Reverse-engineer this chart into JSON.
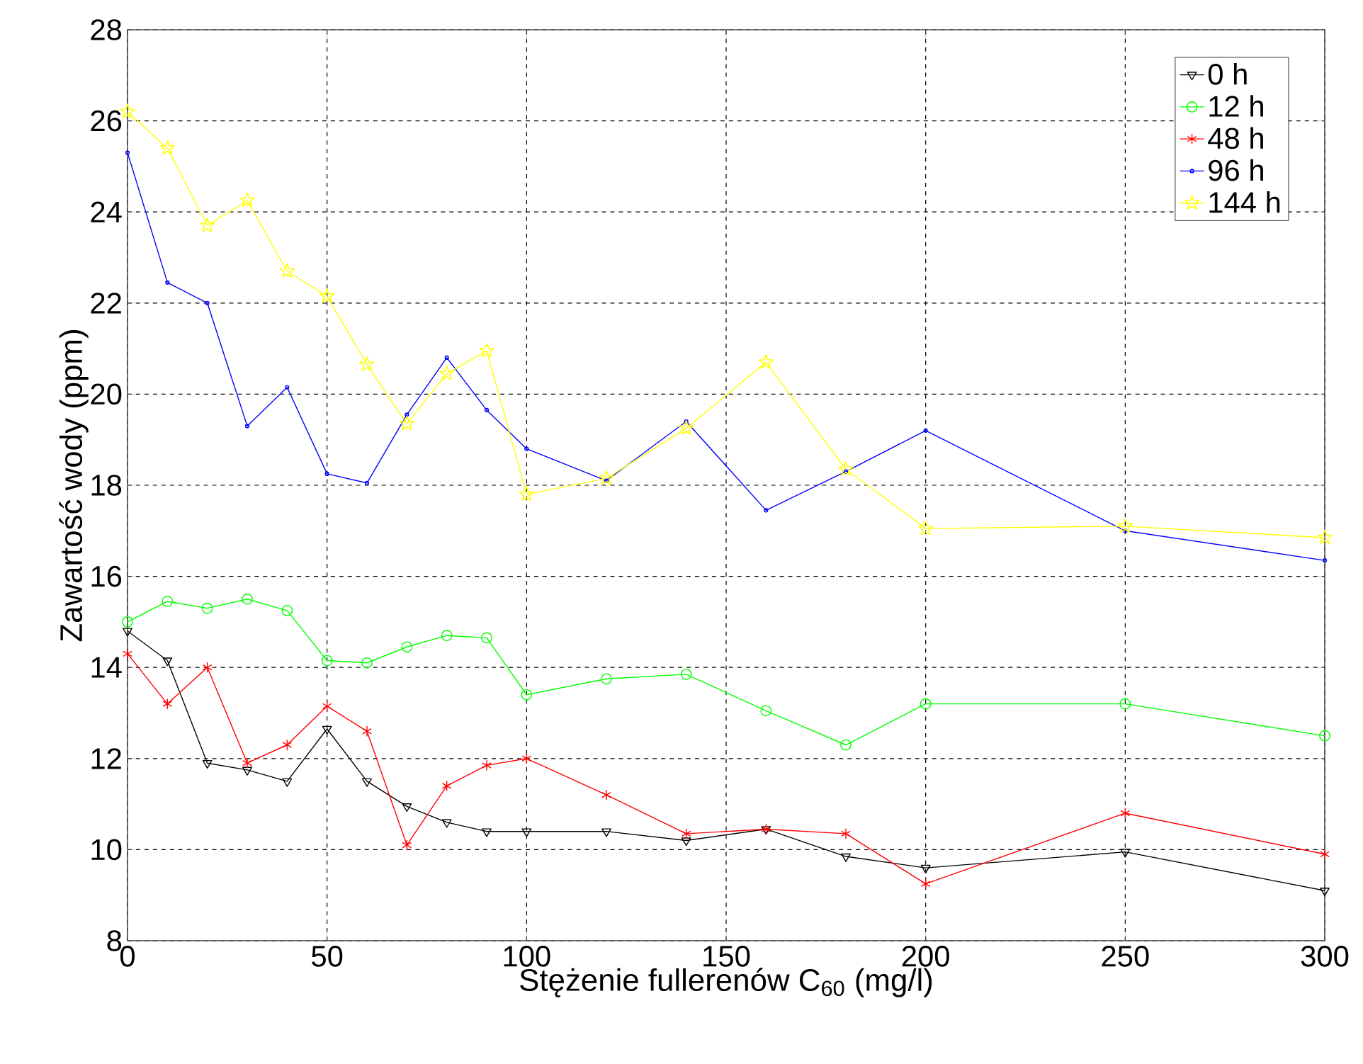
{
  "chart_data": {
    "type": "line",
    "xlabel": "Stężenie fullerenów C$_{60}$ (mg/l)",
    "ylabel": "Zawartość wody (ppm)",
    "x": [
      0,
      10,
      20,
      30,
      40,
      50,
      60,
      70,
      80,
      90,
      100,
      120,
      140,
      160,
      180,
      200,
      250,
      300
    ],
    "series": [
      {
        "name": "0 h",
        "color": "#000000",
        "marker": "triangle",
        "values": [
          14.8,
          14.15,
          11.9,
          11.75,
          11.5,
          12.65,
          11.5,
          10.95,
          10.6,
          10.4,
          10.4,
          10.4,
          10.2,
          10.45,
          9.85,
          9.6,
          9.95,
          9.1
        ]
      },
      {
        "name": "12 h",
        "color": "#00ff00",
        "marker": "circle",
        "values": [
          15.0,
          15.45,
          15.3,
          15.5,
          15.25,
          14.15,
          14.1,
          14.45,
          14.7,
          14.65,
          13.4,
          13.75,
          13.85,
          13.05,
          12.3,
          13.2,
          13.2,
          12.5
        ]
      },
      {
        "name": "48 h",
        "color": "#ff0000",
        "marker": "cross",
        "values": [
          14.3,
          13.2,
          14.0,
          11.9,
          12.3,
          13.15,
          12.6,
          10.1,
          11.4,
          11.85,
          12.0,
          11.2,
          10.35,
          10.45,
          10.35,
          9.25,
          10.8,
          9.9
        ]
      },
      {
        "name": "96 h",
        "color": "#0000ff",
        "marker": "circle",
        "values": [
          25.3,
          22.45,
          22.0,
          19.3,
          20.15,
          18.25,
          18.05,
          19.55,
          20.8,
          19.65,
          18.8,
          18.1,
          19.4,
          17.45,
          18.3,
          19.2,
          17.0,
          16.35
        ]
      },
      {
        "name": "144 h",
        "color": "#ffff00",
        "marker": "star",
        "values": [
          26.2,
          25.4,
          23.7,
          24.25,
          22.7,
          22.15,
          20.65,
          19.35,
          20.45,
          20.95,
          17.8,
          18.15,
          19.25,
          20.7,
          18.35,
          17.05,
          17.1,
          16.85
        ]
      }
    ],
    "xlim": [
      0,
      300
    ],
    "ylim": [
      8,
      28
    ],
    "xticks": [
      0,
      50,
      100,
      150,
      200,
      250,
      300
    ],
    "yticks": [
      8,
      10,
      12,
      14,
      16,
      18,
      20,
      22,
      24,
      26,
      28
    ],
    "grid": true,
    "legend": "top right",
    "line_style": "solid"
  }
}
